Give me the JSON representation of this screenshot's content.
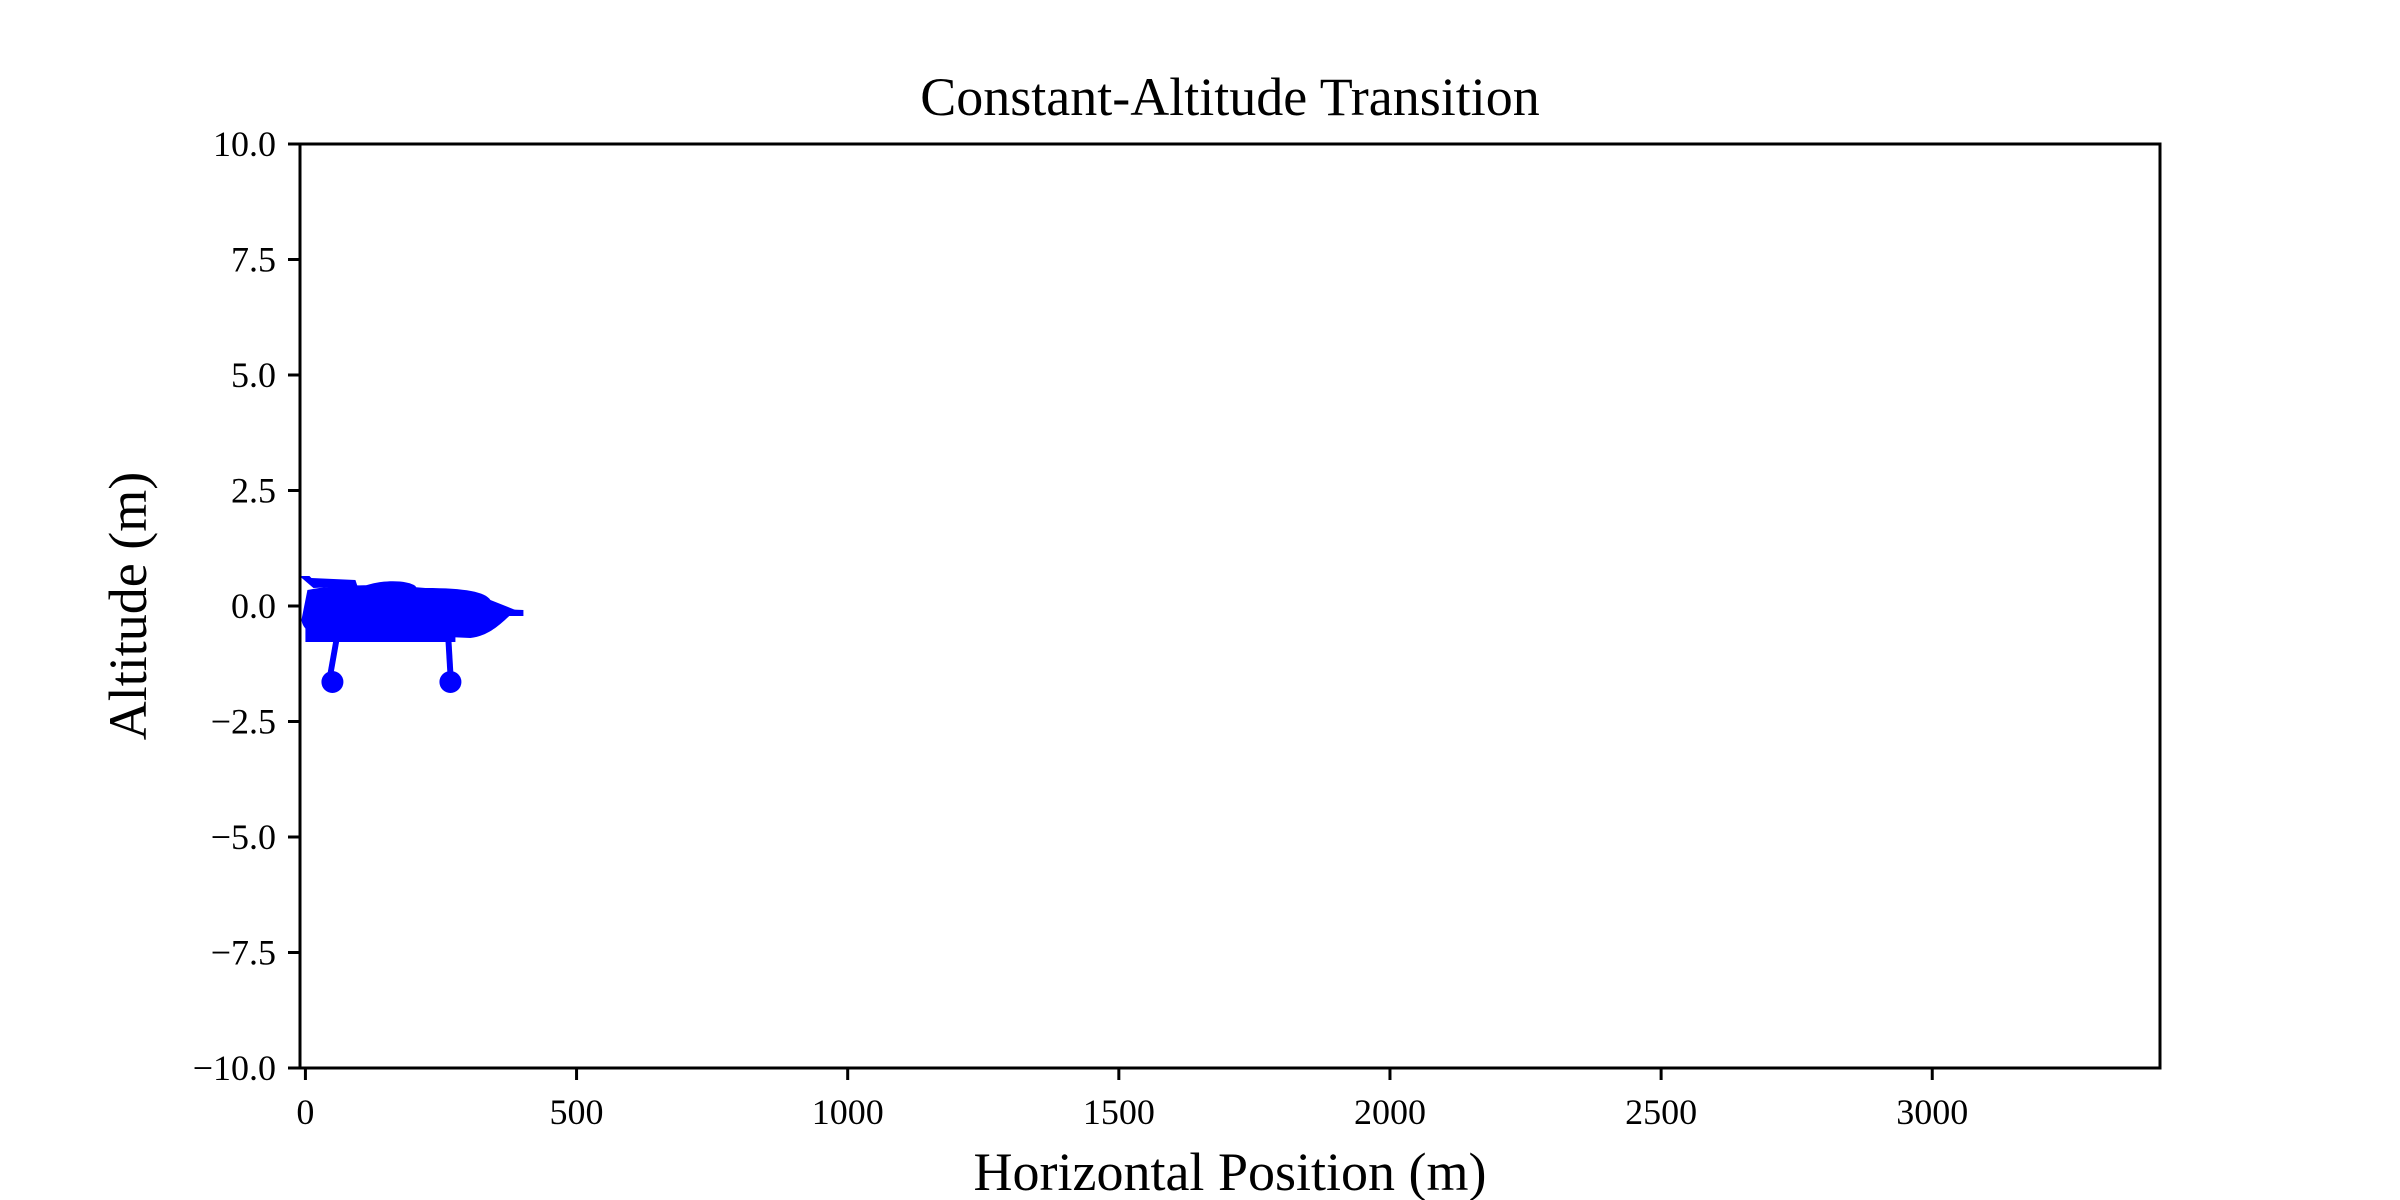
{
  "chart_data": {
    "type": "scatter",
    "title": "Constant-Altitude Transition",
    "xlabel": "Horizontal Position (m)",
    "ylabel": "Altitude (m)",
    "xlim": [
      -10,
      3420
    ],
    "ylim": [
      -10,
      10
    ],
    "xticks": [
      0,
      500,
      1000,
      1500,
      2000,
      2500,
      3000
    ],
    "xtick_labels": [
      "0",
      "500",
      "1000",
      "1500",
      "2000",
      "2500",
      "3000"
    ],
    "yticks": [
      -10,
      -7.5,
      -5,
      -2.5,
      0,
      2.5,
      5,
      7.5,
      10
    ],
    "ytick_labels": [
      "−10.0",
      "−7.5",
      "−5.0",
      "−2.5",
      "0.0",
      "2.5",
      "5.0",
      "7.5",
      "10.0"
    ],
    "grid": false,
    "legend": "none",
    "series": [
      {
        "marker": "airplane-icon",
        "color": "#0000ff",
        "points": [
          {
            "x": 0,
            "y": 0
          }
        ]
      }
    ]
  }
}
